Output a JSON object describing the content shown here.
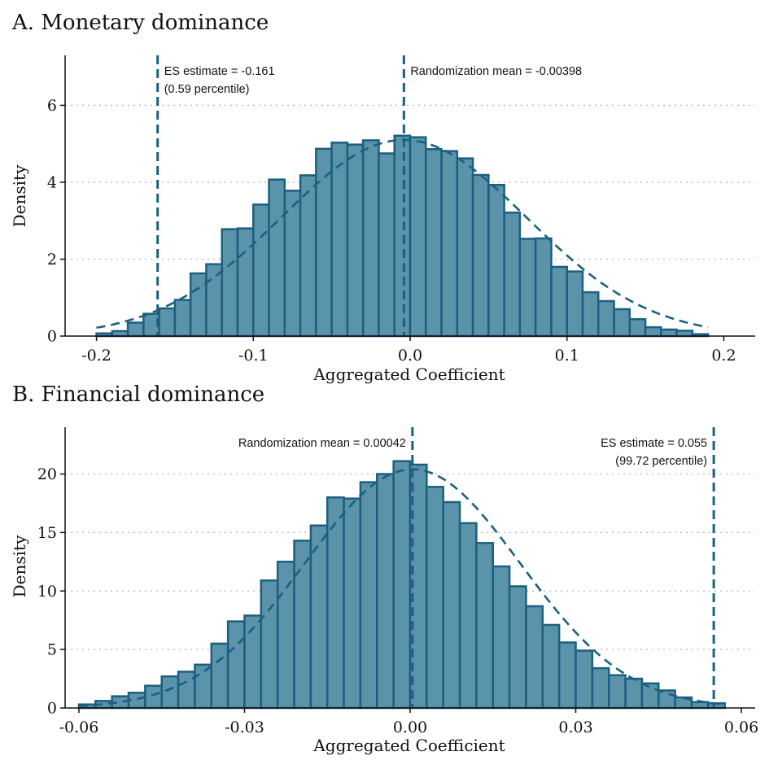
{
  "chart_data": [
    {
      "type": "bar",
      "panel_title": "A. Monetary dominance",
      "xlabel": "Aggregated Coefficient",
      "ylabel": "Density",
      "xlim": [
        -0.22,
        0.22
      ],
      "ylim": [
        0,
        7.3
      ],
      "xticks": [
        -0.2,
        -0.1,
        0.0,
        0.1,
        0.2
      ],
      "xtick_labels": [
        "-0.2",
        "-0.1",
        "0.0",
        "0.1",
        "0.2"
      ],
      "yticks": [
        0,
        2,
        4,
        6
      ],
      "ytick_labels": [
        "0",
        "2",
        "4",
        "6"
      ],
      "grid": "horizontal dotted",
      "bin_start": -0.2,
      "bin_width": 0.01,
      "values": [
        0.07,
        0.13,
        0.35,
        0.58,
        0.72,
        0.94,
        1.63,
        1.87,
        2.78,
        2.8,
        3.42,
        4.07,
        3.78,
        4.18,
        4.87,
        5.03,
        4.98,
        5.09,
        4.75,
        5.21,
        5.17,
        4.86,
        4.81,
        4.62,
        4.19,
        3.93,
        3.21,
        2.53,
        2.54,
        1.8,
        1.68,
        1.14,
        0.91,
        0.7,
        0.44,
        0.23,
        0.17,
        0.14,
        0.05
      ],
      "kde": {
        "mean": -0.004,
        "sd": 0.078,
        "peak": 5.1
      },
      "annotations": [
        {
          "x": -0.161,
          "lines": [
            "ES estimate = -0.161",
            "(0.59 percentile)"
          ],
          "side": "right"
        },
        {
          "x": -0.00398,
          "lines": [
            "Randomization mean = -0.00398"
          ],
          "side": "right"
        }
      ]
    },
    {
      "type": "bar",
      "panel_title": "B. Financial dominance",
      "xlabel": "Aggregated Coefficient",
      "ylabel": "Density",
      "xlim": [
        -0.0625,
        0.0625
      ],
      "ylim": [
        0,
        24
      ],
      "xticks": [
        -0.06,
        -0.03,
        0.0,
        0.03,
        0.06
      ],
      "xtick_labels": [
        "-0.06",
        "-0.03",
        "0.00",
        "0.03",
        "0.06"
      ],
      "yticks": [
        0,
        5,
        10,
        15,
        20
      ],
      "ytick_labels": [
        "0",
        "5",
        "10",
        "15",
        "20"
      ],
      "grid": "horizontal dotted",
      "bin_start": -0.06,
      "bin_width": 0.003,
      "values": [
        0.3,
        0.6,
        1.0,
        1.3,
        1.9,
        2.7,
        3.1,
        3.7,
        5.5,
        7.4,
        7.9,
        10.9,
        12.5,
        14.3,
        15.6,
        18.0,
        17.9,
        19.3,
        20.0,
        21.1,
        20.8,
        18.9,
        17.6,
        15.8,
        14.1,
        12.1,
        10.4,
        8.7,
        7.1,
        5.6,
        4.9,
        3.4,
        2.8,
        2.5,
        2.1,
        1.5,
        0.9,
        0.5,
        0.4
      ],
      "kde": {
        "mean": 0.00042,
        "sd": 0.0195,
        "peak": 20.4
      },
      "annotations": [
        {
          "x": 0.00042,
          "lines": [
            "Randomization mean = 0.00042"
          ],
          "side": "left"
        },
        {
          "x": 0.055,
          "lines": [
            "ES estimate = 0.055",
            "(99.72 percentile)"
          ],
          "side": "left"
        }
      ]
    }
  ]
}
